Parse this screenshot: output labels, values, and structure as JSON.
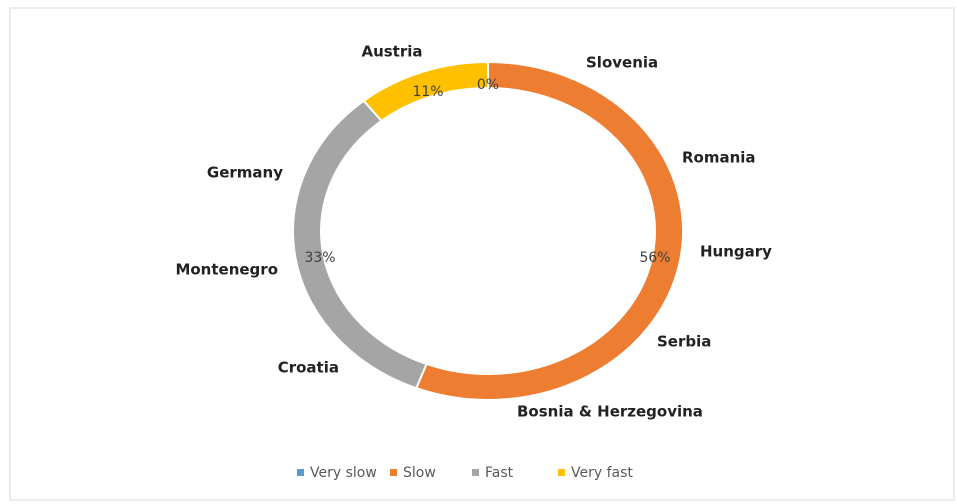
{
  "chart_data": {
    "type": "donut",
    "categories": [
      "Very slow",
      "Slow",
      "Fast",
      "Very fast"
    ],
    "values": [
      0,
      56,
      33,
      11
    ],
    "value_labels": [
      "0%",
      "56%",
      "33%",
      "11%"
    ],
    "colors": [
      "#5b9bd5",
      "#ed7d31",
      "#a5a5a5",
      "#ffc000"
    ],
    "legend": "bottom",
    "annotations": [
      "Slovenia",
      "Austria",
      "Romania",
      "Germany",
      "Hungary",
      "Montenegro",
      "Serbia",
      "Croatia",
      "Bosnia & Herzegovina"
    ]
  }
}
